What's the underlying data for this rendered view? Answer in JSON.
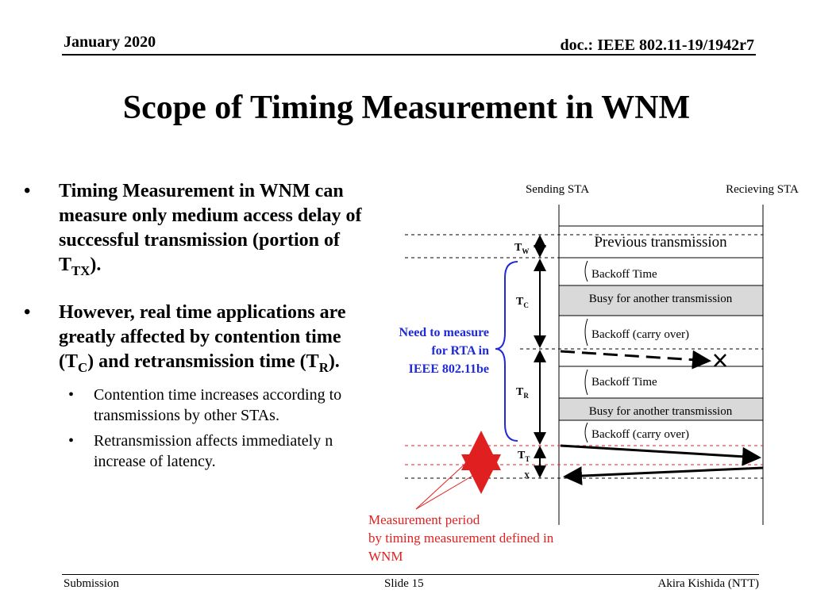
{
  "header": {
    "date": "January 2020",
    "doc": "doc.: IEEE 802.11-19/1942r7"
  },
  "title": "Scope of Timing Measurement in WNM",
  "bullets": {
    "b1": {
      "text": "Timing Measurement in WNM can measure only medium access delay of successful transmission (portion of T",
      "sub": "TX",
      "tail": ")."
    },
    "b2": {
      "pre": "However, real time applications are greatly affected by contention time (T",
      "sub1": "C",
      "mid": ") and retransmission time (T",
      "sub2": "R",
      "tail": ")."
    },
    "sub1": "Contention time increases according to transmissions by other STAs.",
    "sub2": "Retransmission affects immediately n increase of latency."
  },
  "diagram": {
    "sending_sta": "Sending STA",
    "receiving_sta": "Recieving STA",
    "previous_transmission": "Previous transmission",
    "backoff_time_1": "Backoff Time",
    "busy_1": "Busy for another transmission",
    "backoff_carry_1": "Backoff (carry over)",
    "backoff_time_2": "Backoff Time",
    "busy_2": "Busy for another transmission",
    "backoff_carry_2": "Backoff (carry over)",
    "tw": {
      "main": "T",
      "sub": "W"
    },
    "tc": {
      "main": "T",
      "sub": "C"
    },
    "tr": {
      "main": "T",
      "sub": "R"
    },
    "tt": {
      "main": "T",
      "sub": "T"
    },
    "tx_label": "X",
    "need_measure": [
      "Need to measure",
      "for RTA in",
      "IEEE 802.11be"
    ],
    "measurement_period": [
      "Measurement period",
      "by timing measurement defined in",
      "WNM"
    ],
    "colors": {
      "blue": "#1f2ad6",
      "red": "#e02020",
      "gray": "#d9d9d9"
    }
  },
  "footer": {
    "left": "Submission",
    "center": "Slide 15",
    "right": "Akira Kishida (NTT)"
  }
}
